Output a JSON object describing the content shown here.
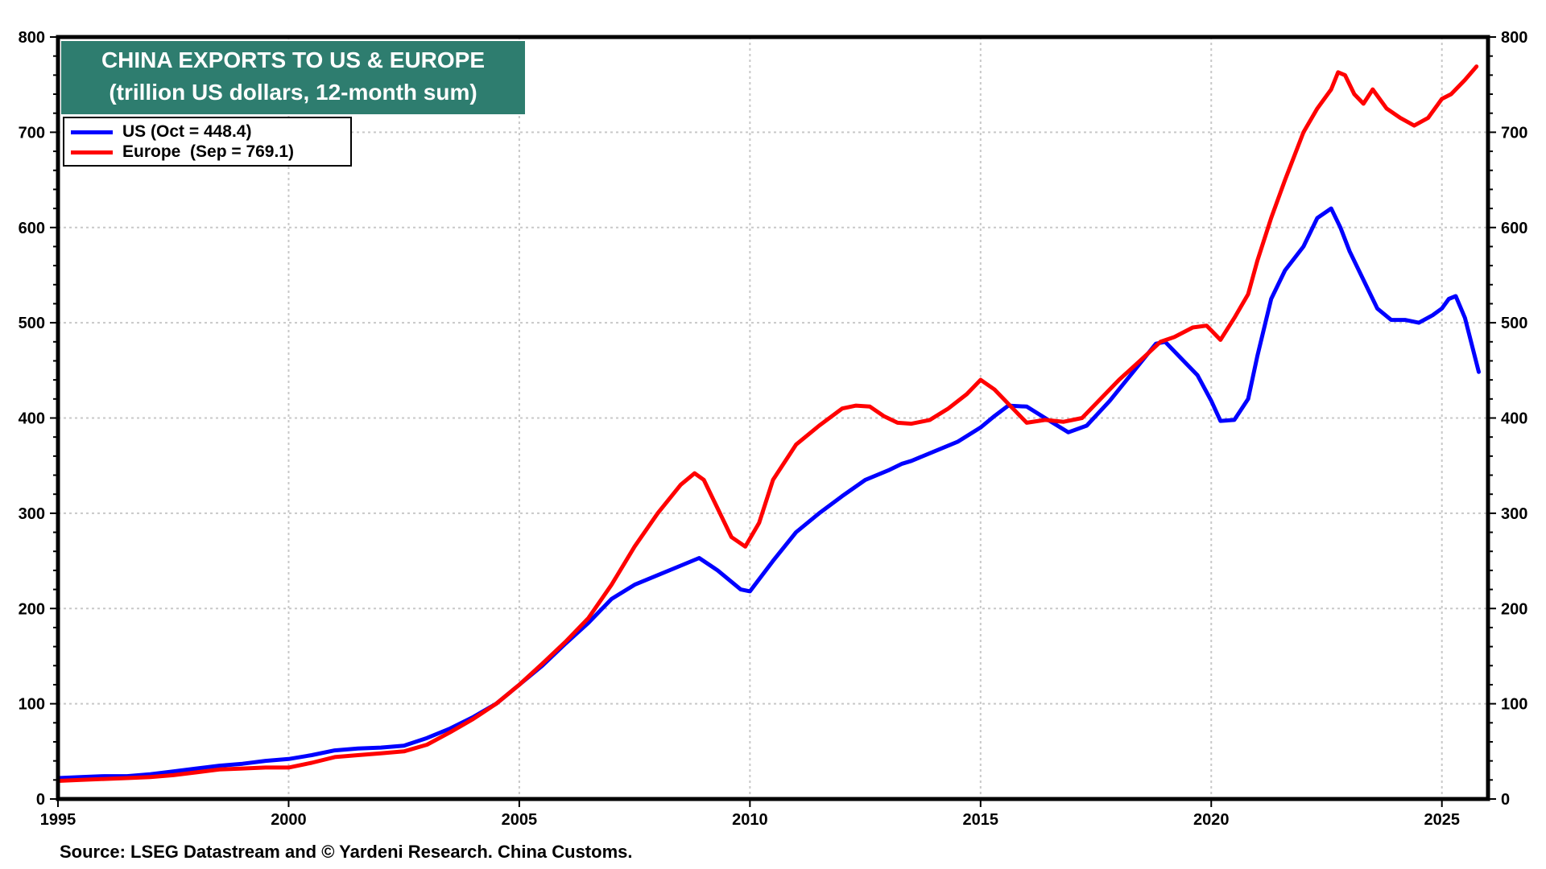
{
  "chart_data": {
    "type": "line",
    "title": "CHINA EXPORTS TO US & EUROPE",
    "subtitle": "(trillion US dollars, 12-month sum)",
    "xlabel": "",
    "ylabel": "",
    "xlim": [
      1995,
      2026
    ],
    "ylim": [
      0,
      800
    ],
    "xticks": [
      "1995",
      "2000",
      "2005",
      "2010",
      "2015",
      "2020",
      "2025"
    ],
    "yticks": [
      "0",
      "100",
      "200",
      "300",
      "400",
      "500",
      "600",
      "700",
      "800"
    ],
    "grid": true,
    "legend_position": "top-left",
    "source": "Source: LSEG Datastream and © Yardeni Research. China Customs.",
    "colors": {
      "title_bg": "#2e7d6f",
      "US": "#0000ff",
      "Europe": "#ff0000"
    },
    "series": [
      {
        "name": "US",
        "legend_label": "US (Oct = 448.4)",
        "x": [
          1995.0,
          1995.5,
          1996.0,
          1996.5,
          1997.0,
          1997.5,
          1998.0,
          1998.5,
          1999.0,
          1999.5,
          2000.0,
          2000.5,
          2001.0,
          2001.5,
          2002.0,
          2002.5,
          2003.0,
          2003.5,
          2004.0,
          2004.5,
          2005.0,
          2005.5,
          2006.0,
          2006.5,
          2007.0,
          2007.5,
          2008.0,
          2008.5,
          2008.9,
          2009.3,
          2009.8,
          2010.0,
          2010.5,
          2011.0,
          2011.5,
          2012.0,
          2012.5,
          2013.0,
          2013.3,
          2013.5,
          2014.0,
          2014.5,
          2015.0,
          2015.3,
          2015.6,
          2016.0,
          2016.5,
          2016.9,
          2017.3,
          2017.8,
          2018.3,
          2018.8,
          2019.0,
          2019.3,
          2019.7,
          2020.0,
          2020.2,
          2020.5,
          2020.8,
          2021.0,
          2021.3,
          2021.6,
          2022.0,
          2022.3,
          2022.6,
          2022.8,
          2023.0,
          2023.3,
          2023.6,
          2023.9,
          2024.2,
          2024.5,
          2024.8,
          2025.0,
          2025.15,
          2025.3,
          2025.5,
          2025.8
        ],
        "values": [
          22,
          23,
          24,
          24,
          26,
          29,
          32,
          35,
          37,
          40,
          42,
          46,
          51,
          53,
          54,
          56,
          64,
          74,
          86,
          100,
          120,
          140,
          163,
          185,
          210,
          225,
          235,
          245,
          253,
          240,
          220,
          218,
          250,
          280,
          300,
          318,
          335,
          345,
          352,
          355,
          365,
          375,
          390,
          402,
          413,
          412,
          397,
          385,
          392,
          418,
          448,
          478,
          480,
          465,
          445,
          418,
          397,
          398,
          420,
          465,
          525,
          555,
          580,
          610,
          620,
          600,
          575,
          545,
          515,
          503,
          503,
          500,
          508,
          515,
          525,
          528,
          505,
          448.4
        ]
      },
      {
        "name": "Europe",
        "legend_label": "Europe  (Sep = 769.1)",
        "x": [
          1995.0,
          1995.5,
          1996.0,
          1996.5,
          1997.0,
          1997.5,
          1998.0,
          1998.5,
          1999.0,
          1999.5,
          2000.0,
          2000.5,
          2001.0,
          2001.5,
          2002.0,
          2002.5,
          2003.0,
          2003.5,
          2004.0,
          2004.5,
          2005.0,
          2005.5,
          2006.0,
          2006.5,
          2007.0,
          2007.5,
          2008.0,
          2008.5,
          2008.8,
          2009.0,
          2009.3,
          2009.6,
          2009.9,
          2010.2,
          2010.5,
          2011.0,
          2011.5,
          2012.0,
          2012.3,
          2012.6,
          2012.9,
          2013.2,
          2013.5,
          2013.9,
          2014.3,
          2014.7,
          2015.0,
          2015.3,
          2015.7,
          2016.0,
          2016.4,
          2016.8,
          2017.2,
          2017.6,
          2018.0,
          2018.5,
          2018.9,
          2019.2,
          2019.6,
          2019.9,
          2020.0,
          2020.2,
          2020.5,
          2020.8,
          2021.0,
          2021.3,
          2021.6,
          2022.0,
          2022.3,
          2022.6,
          2022.75,
          2022.9,
          2023.1,
          2023.3,
          2023.5,
          2023.8,
          2024.1,
          2024.4,
          2024.7,
          2025.0,
          2025.2,
          2025.5,
          2025.75
        ],
        "values": [
          19,
          20,
          21,
          22,
          23,
          25,
          28,
          31,
          32,
          33,
          33,
          38,
          44,
          46,
          48,
          50,
          57,
          70,
          84,
          100,
          120,
          142,
          165,
          190,
          225,
          265,
          300,
          330,
          342,
          335,
          305,
          275,
          265,
          290,
          335,
          372,
          392,
          410,
          413,
          412,
          402,
          395,
          394,
          398,
          410,
          425,
          440,
          430,
          410,
          395,
          398,
          396,
          400,
          420,
          440,
          462,
          480,
          485,
          495,
          497,
          492,
          482,
          505,
          530,
          565,
          610,
          650,
          700,
          725,
          745,
          763,
          760,
          740,
          730,
          745,
          725,
          715,
          707,
          715,
          735,
          740,
          755,
          769.1
        ]
      }
    ]
  },
  "header": {
    "title": "CHINA EXPORTS TO US & EUROPE",
    "subtitle": "(trillion US dollars, 12-month sum)"
  },
  "legend": {
    "items": [
      {
        "label": "US (Oct = 448.4)",
        "color": "#0000ff"
      },
      {
        "label": "Europe  (Sep = 769.1)",
        "color": "#ff0000"
      }
    ]
  },
  "footer": {
    "source": "Source: LSEG Datastream and © Yardeni Research. China Customs."
  }
}
